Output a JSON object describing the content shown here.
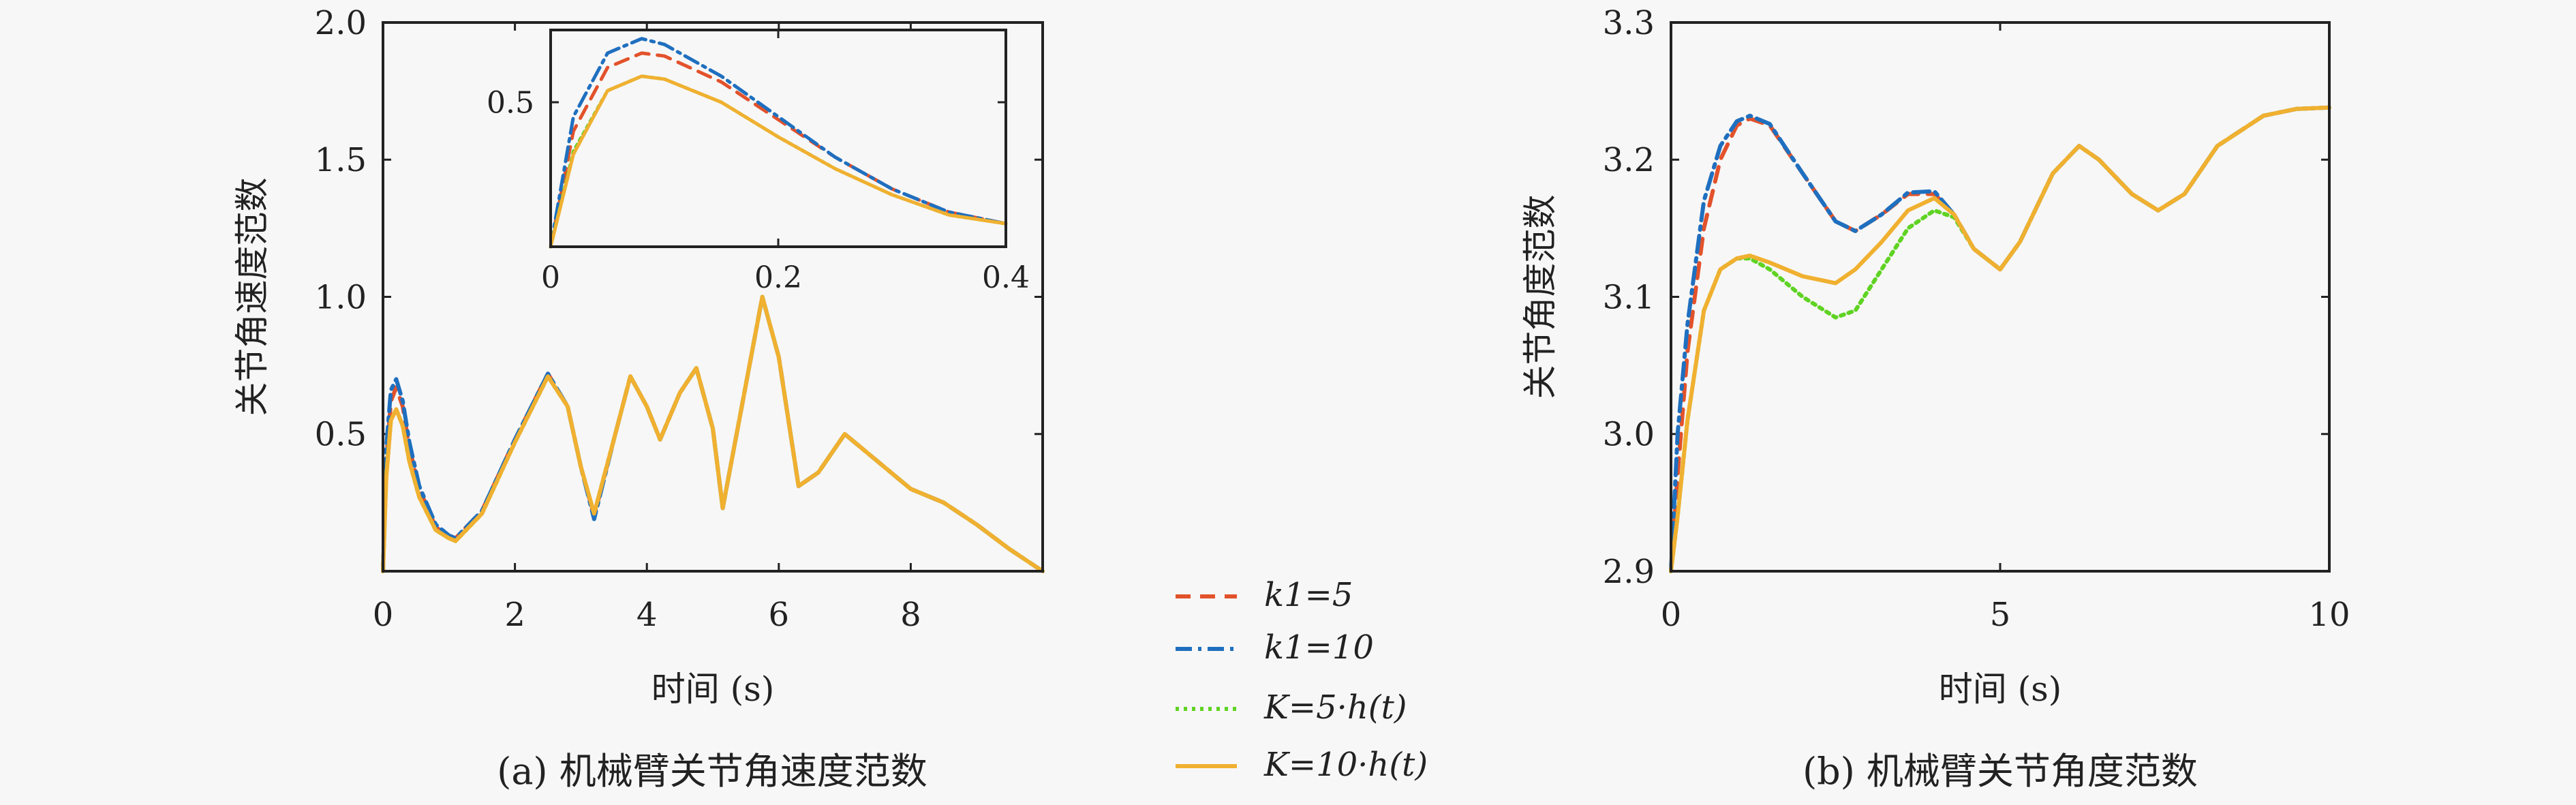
{
  "chart_data": [
    {
      "id": "a",
      "type": "line",
      "caption": "(a) 机械臂关节角速度范数",
      "xlabel": "时间 (s)",
      "ylabel": "关节角速度范数",
      "xlim": [
        0,
        10
      ],
      "ylim": [
        0,
        2.0
      ],
      "xticks": [
        {
          "v": 0,
          "t": "0"
        },
        {
          "v": 2,
          "t": "2"
        },
        {
          "v": 4,
          "t": "4"
        },
        {
          "v": 6,
          "t": "6"
        },
        {
          "v": 8,
          "t": "8"
        }
      ],
      "yticks": [
        {
          "v": 0.5,
          "t": "0.5"
        },
        {
          "v": 1.0,
          "t": "1.0"
        },
        {
          "v": 1.5,
          "t": "1.5"
        },
        {
          "v": 2.0,
          "t": "2.0"
        }
      ],
      "series": [
        {
          "key": "k5",
          "x": [
            0,
            0.05,
            0.12,
            0.2,
            0.3,
            0.4,
            0.55,
            0.8,
            1.0,
            1.1,
            1.5,
            2.0,
            2.5,
            2.8,
            3.0,
            3.2,
            3.5,
            3.75,
            4.0,
            4.2,
            4.5,
            4.75,
            5.0,
            5.15,
            5.4,
            5.75,
            6.0,
            6.3,
            6.6,
            7.0,
            7.4,
            8.0,
            8.5,
            9.0,
            9.5,
            10.0
          ],
          "y": [
            0,
            0.4,
            0.62,
            0.67,
            0.6,
            0.45,
            0.3,
            0.16,
            0.13,
            0.12,
            0.22,
            0.48,
            0.72,
            0.6,
            0.38,
            0.2,
            0.48,
            0.71,
            0.6,
            0.48,
            0.65,
            0.74,
            0.52,
            0.23,
            0.55,
            1.0,
            0.78,
            0.31,
            0.36,
            0.5,
            0.42,
            0.3,
            0.25,
            0.17,
            0.08,
            0
          ]
        },
        {
          "key": "k10",
          "x": [
            0,
            0.05,
            0.12,
            0.2,
            0.3,
            0.4,
            0.55,
            0.8,
            1.0,
            1.1,
            1.5,
            2.0,
            2.5,
            2.8,
            3.0,
            3.2,
            3.5,
            3.75,
            4.0,
            4.2,
            4.5,
            4.75,
            5.0,
            5.15,
            5.4,
            5.75,
            6.0,
            6.3,
            6.6,
            7.0,
            7.4,
            8.0,
            8.5,
            9.0,
            9.5,
            10.0
          ],
          "y": [
            0,
            0.45,
            0.66,
            0.7,
            0.62,
            0.47,
            0.31,
            0.17,
            0.13,
            0.12,
            0.22,
            0.48,
            0.72,
            0.6,
            0.38,
            0.19,
            0.48,
            0.71,
            0.6,
            0.48,
            0.65,
            0.74,
            0.52,
            0.23,
            0.55,
            1.0,
            0.78,
            0.31,
            0.36,
            0.5,
            0.42,
            0.3,
            0.25,
            0.17,
            0.08,
            0
          ]
        },
        {
          "key": "K5",
          "x": [
            0,
            0.05,
            0.12,
            0.2,
            0.3,
            0.4,
            0.55,
            0.8,
            1.0,
            1.1,
            1.5,
            2.0,
            2.5,
            2.8,
            3.0,
            3.2,
            3.5,
            3.75,
            4.0,
            4.2,
            4.5,
            4.75,
            5.0,
            5.15,
            5.4,
            5.75,
            6.0,
            6.3,
            6.6,
            7.0,
            7.4,
            8.0,
            8.5,
            9.0,
            9.5,
            10.0
          ],
          "y": [
            0,
            0.35,
            0.55,
            0.59,
            0.53,
            0.4,
            0.27,
            0.15,
            0.12,
            0.11,
            0.21,
            0.47,
            0.71,
            0.6,
            0.38,
            0.21,
            0.48,
            0.71,
            0.6,
            0.48,
            0.65,
            0.74,
            0.52,
            0.23,
            0.55,
            1.0,
            0.78,
            0.31,
            0.36,
            0.5,
            0.42,
            0.3,
            0.25,
            0.17,
            0.08,
            0
          ]
        },
        {
          "key": "K10",
          "x": [
            0,
            0.05,
            0.12,
            0.2,
            0.3,
            0.4,
            0.55,
            0.8,
            1.0,
            1.1,
            1.5,
            2.0,
            2.5,
            2.8,
            3.0,
            3.2,
            3.5,
            3.75,
            4.0,
            4.2,
            4.5,
            4.75,
            5.0,
            5.15,
            5.4,
            5.75,
            6.0,
            6.3,
            6.6,
            7.0,
            7.4,
            8.0,
            8.5,
            9.0,
            9.5,
            10.0
          ],
          "y": [
            0,
            0.34,
            0.55,
            0.59,
            0.53,
            0.4,
            0.27,
            0.15,
            0.12,
            0.11,
            0.21,
            0.47,
            0.71,
            0.6,
            0.38,
            0.21,
            0.48,
            0.71,
            0.6,
            0.48,
            0.65,
            0.74,
            0.52,
            0.23,
            0.55,
            1.0,
            0.78,
            0.31,
            0.36,
            0.5,
            0.42,
            0.3,
            0.25,
            0.17,
            0.08,
            0
          ]
        }
      ]
    },
    {
      "id": "a-inset",
      "type": "line",
      "xlim": [
        0,
        0.4
      ],
      "ylim": [
        0,
        0.75
      ],
      "xticks": [
        {
          "v": 0,
          "t": "0"
        },
        {
          "v": 0.2,
          "t": "0.2"
        },
        {
          "v": 0.4,
          "t": "0.4"
        }
      ],
      "yticks": [
        {
          "v": 0.5,
          "t": "0.5"
        }
      ],
      "series": [
        {
          "key": "k5",
          "x": [
            0,
            0.02,
            0.05,
            0.08,
            0.1,
            0.15,
            0.2,
            0.25,
            0.3,
            0.35,
            0.4
          ],
          "y": [
            0,
            0.4,
            0.62,
            0.67,
            0.66,
            0.57,
            0.44,
            0.31,
            0.2,
            0.12,
            0.08
          ]
        },
        {
          "key": "k10",
          "x": [
            0,
            0.02,
            0.05,
            0.08,
            0.1,
            0.15,
            0.2,
            0.25,
            0.3,
            0.35,
            0.4
          ],
          "y": [
            0,
            0.45,
            0.67,
            0.72,
            0.7,
            0.59,
            0.45,
            0.31,
            0.2,
            0.12,
            0.08
          ]
        },
        {
          "key": "K5",
          "x": [
            0,
            0.02,
            0.05,
            0.08,
            0.1,
            0.15,
            0.2,
            0.25,
            0.3,
            0.35,
            0.4
          ],
          "y": [
            0,
            0.33,
            0.54,
            0.59,
            0.58,
            0.5,
            0.38,
            0.27,
            0.18,
            0.11,
            0.08
          ]
        },
        {
          "key": "K10",
          "x": [
            0,
            0.02,
            0.05,
            0.08,
            0.1,
            0.15,
            0.2,
            0.25,
            0.3,
            0.35,
            0.4
          ],
          "y": [
            0,
            0.32,
            0.54,
            0.59,
            0.58,
            0.5,
            0.38,
            0.27,
            0.18,
            0.11,
            0.08
          ]
        }
      ]
    },
    {
      "id": "b",
      "type": "line",
      "caption": "(b) 机械臂关节角度范数",
      "xlabel": "时间 (s)",
      "ylabel": "关节角度范数",
      "xlim": [
        0,
        10
      ],
      "ylim": [
        2.9,
        3.3
      ],
      "xticks": [
        {
          "v": 0,
          "t": "0"
        },
        {
          "v": 5,
          "t": "5"
        },
        {
          "v": 10,
          "t": "10"
        }
      ],
      "yticks": [
        {
          "v": 2.9,
          "t": "2.9"
        },
        {
          "v": 3.0,
          "t": "3.0"
        },
        {
          "v": 3.1,
          "t": "3.1"
        },
        {
          "v": 3.2,
          "t": "3.2"
        },
        {
          "v": 3.3,
          "t": "3.3"
        }
      ],
      "series": [
        {
          "key": "k5",
          "x": [
            0,
            0.1,
            0.25,
            0.5,
            0.75,
            1.0,
            1.2,
            1.5,
            2.0,
            2.5,
            2.8,
            3.2,
            3.6,
            4.0,
            4.3,
            4.6,
            5.0,
            5.3,
            5.8,
            6.2,
            6.5,
            7.0,
            7.4,
            7.8,
            8.3,
            9.0,
            9.5,
            10.0
          ],
          "y": [
            2.9,
            2.97,
            3.06,
            3.15,
            3.2,
            3.225,
            3.23,
            3.225,
            3.19,
            3.155,
            3.148,
            3.16,
            3.175,
            3.175,
            3.16,
            3.135,
            3.12,
            3.14,
            3.19,
            3.21,
            3.2,
            3.175,
            3.163,
            3.175,
            3.21,
            3.232,
            3.237,
            3.238
          ]
        },
        {
          "key": "k10",
          "x": [
            0,
            0.1,
            0.25,
            0.5,
            0.75,
            1.0,
            1.2,
            1.5,
            2.0,
            2.5,
            2.8,
            3.2,
            3.6,
            4.0,
            4.3,
            4.6,
            5.0,
            5.3,
            5.8,
            6.2,
            6.5,
            7.0,
            7.4,
            7.8,
            8.3,
            9.0,
            9.5,
            10.0
          ],
          "y": [
            2.9,
            3.0,
            3.08,
            3.17,
            3.21,
            3.228,
            3.232,
            3.226,
            3.19,
            3.155,
            3.148,
            3.16,
            3.176,
            3.177,
            3.16,
            3.135,
            3.12,
            3.14,
            3.19,
            3.21,
            3.2,
            3.175,
            3.163,
            3.175,
            3.21,
            3.232,
            3.237,
            3.238
          ]
        },
        {
          "key": "K5",
          "x": [
            0,
            0.1,
            0.25,
            0.5,
            0.75,
            1.0,
            1.2,
            1.5,
            2.0,
            2.5,
            2.8,
            3.2,
            3.6,
            4.0,
            4.3,
            4.6,
            5.0,
            5.3,
            5.8,
            6.2,
            6.5,
            7.0,
            7.4,
            7.8,
            8.3,
            9.0,
            9.5,
            10.0
          ],
          "y": [
            2.9,
            2.94,
            3.01,
            3.09,
            3.12,
            3.128,
            3.128,
            3.12,
            3.1,
            3.085,
            3.09,
            3.12,
            3.15,
            3.163,
            3.158,
            3.135,
            3.12,
            3.14,
            3.19,
            3.21,
            3.2,
            3.175,
            3.163,
            3.175,
            3.21,
            3.232,
            3.237,
            3.238
          ]
        },
        {
          "key": "K10",
          "x": [
            0,
            0.1,
            0.25,
            0.5,
            0.75,
            1.0,
            1.2,
            1.5,
            2.0,
            2.5,
            2.8,
            3.2,
            3.6,
            4.0,
            4.3,
            4.6,
            5.0,
            5.3,
            5.8,
            6.2,
            6.5,
            7.0,
            7.4,
            7.8,
            8.3,
            9.0,
            9.5,
            10.0
          ],
          "y": [
            2.9,
            2.94,
            3.01,
            3.09,
            3.12,
            3.128,
            3.13,
            3.125,
            3.115,
            3.11,
            3.12,
            3.14,
            3.163,
            3.172,
            3.16,
            3.135,
            3.12,
            3.14,
            3.19,
            3.21,
            3.2,
            3.175,
            3.163,
            3.175,
            3.21,
            3.232,
            3.237,
            3.238
          ]
        }
      ]
    }
  ],
  "legend": {
    "placement": "bottom-center",
    "entries": [
      {
        "key": "k5",
        "label": "k1=5",
        "color": "#e2522b",
        "style": "dashed"
      },
      {
        "key": "k10",
        "label": "k1=10",
        "color": "#1f6fbf",
        "style": "dashdot"
      },
      {
        "key": "K5",
        "label": "K=5·h(t)",
        "color": "#5fd323",
        "style": "dotted"
      },
      {
        "key": "K10",
        "label": "K=10·h(t)",
        "color": "#f0b030",
        "style": "solid"
      }
    ]
  }
}
